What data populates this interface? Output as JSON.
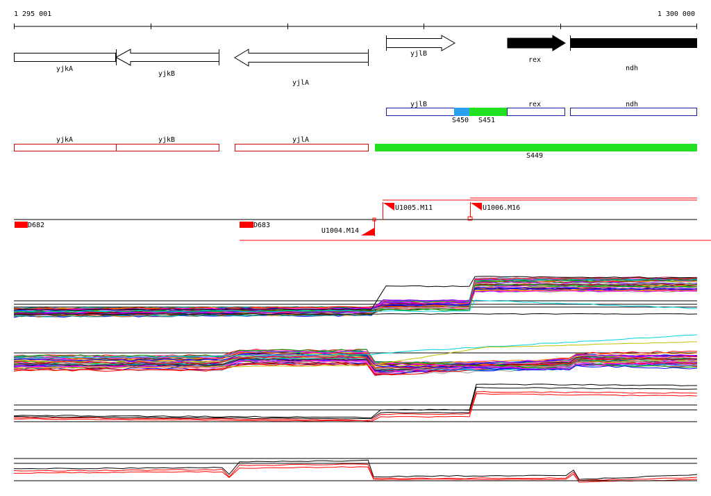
{
  "coordinate_axis": {
    "start_label": "1 295 001",
    "end_label": "1 300 000"
  },
  "gene_track": {
    "genes": [
      {
        "name": "yjkA",
        "strand": "plus",
        "fill": "#ffffff"
      },
      {
        "name": "yjkB",
        "strand": "minus",
        "fill": "#ffffff"
      },
      {
        "name": "yjlA",
        "strand": "minus",
        "fill": "#ffffff"
      },
      {
        "name": "yjlB",
        "strand": "plus",
        "fill": "#ffffff"
      },
      {
        "name": "rex",
        "strand": "plus",
        "fill": "#000000"
      },
      {
        "name": "ndh",
        "strand": "plus",
        "fill": "#000000"
      }
    ]
  },
  "segment_track_blue": {
    "color": "#1a1aa0",
    "boxes": [
      "yjlB",
      "rex",
      "ndh"
    ],
    "markers": [
      {
        "name": "S450",
        "color": "#2aa0f0"
      },
      {
        "name": "S451",
        "color": "#22e022"
      }
    ]
  },
  "segment_track_red": {
    "color": "#cc0000",
    "boxes": [
      "yjkA",
      "yjkB",
      "yjlA"
    ],
    "highlight": {
      "name": "S449",
      "color": "#22e022"
    }
  },
  "feature_track": {
    "color": "#ff0000",
    "features": [
      "D682",
      "D683",
      "U1004.M14",
      "U1005.M11",
      "U1006.M16"
    ]
  },
  "profile_tracks": {
    "palette": [
      "#ff0000",
      "#00a000",
      "#0000ff",
      "#ff00ff",
      "#00c0c0",
      "#c0c000",
      "#ff8000",
      "#8000ff",
      "#008080",
      "#800000",
      "#a0a0a0",
      "#ff69b4"
    ],
    "accent_colors": {
      "black": "#000000",
      "red": "#ff0000",
      "cyan": "#00d0e0"
    }
  }
}
